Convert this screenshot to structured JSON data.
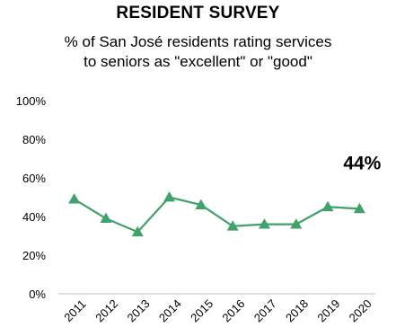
{
  "chart_data": {
    "type": "line",
    "title": "RESIDENT SURVEY",
    "subtitle_lines": [
      "% of San José residents rating services",
      "to seniors as \"excellent\" or \"good\""
    ],
    "categories": [
      "2011",
      "2012",
      "2013",
      "2014",
      "2015",
      "2016",
      "2017",
      "2018",
      "2019",
      "2020"
    ],
    "series": [
      {
        "values": [
          49,
          39,
          32,
          50,
          46,
          35,
          36,
          36,
          45,
          44
        ]
      }
    ],
    "ylim": [
      0,
      100
    ],
    "yticks": [
      0,
      20,
      40,
      60,
      80,
      100
    ],
    "ytick_labels": [
      "0%",
      "20%",
      "40%",
      "60%",
      "80%",
      "100%"
    ],
    "grid": false,
    "annotation": {
      "text": "44%",
      "category": "2020"
    },
    "colors": {
      "line": "#3fa26b",
      "marker": "#3fa26b",
      "axis": "#bfbfbf"
    }
  }
}
